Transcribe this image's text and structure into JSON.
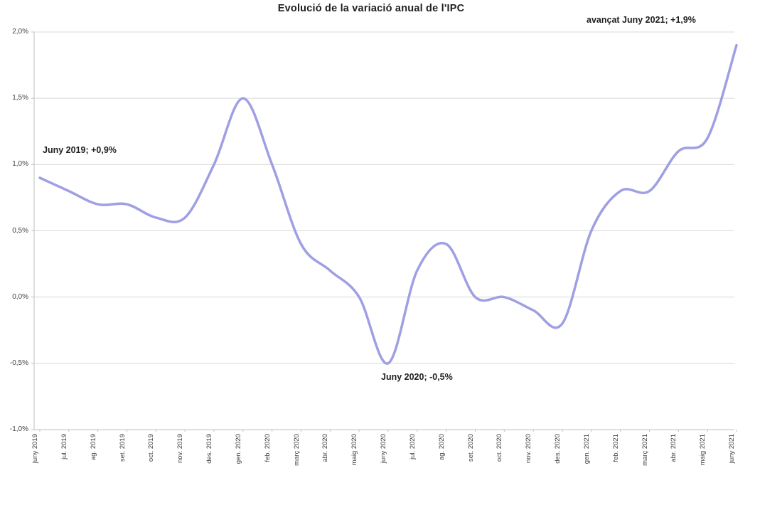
{
  "chart": {
    "background_color": "#ffffff",
    "line_color": "#9f9fe4",
    "gridline_color": "#d9d9d9",
    "axis_color": "#bfbfbf",
    "text_color": "#1f1f1f",
    "axis_label_color": "#3f3f3f"
  },
  "chart_data": {
    "type": "line",
    "title": "Evolució de la variació anual de l'IPC",
    "xlabel": "",
    "ylabel": "",
    "ylim": [
      -1.0,
      2.0
    ],
    "grid": "horizontal",
    "legend": "none",
    "smooth": true,
    "categories": [
      "juny 2019",
      "jul. 2019",
      "ag. 2019",
      "set. 2019",
      "oct. 2019",
      "nov. 2019",
      "des. 2019",
      "gen. 2020",
      "feb. 2020",
      "març 2020",
      "abr. 2020",
      "maig 2020",
      "juny 2020",
      "jul. 2020",
      "ag. 2020",
      "set. 2020",
      "oct. 2020",
      "nov. 2020",
      "des. 2020",
      "gen. 2021",
      "feb. 2021",
      "març 2021",
      "abr. 2021",
      "maig 2021",
      "juny 2021"
    ],
    "values": [
      0.9,
      0.8,
      0.7,
      0.7,
      0.6,
      0.6,
      1.0,
      1.5,
      1.0,
      0.4,
      0.2,
      0.0,
      -0.5,
      0.2,
      0.4,
      0.0,
      0.0,
      -0.1,
      -0.2,
      0.5,
      0.8,
      0.8,
      1.1,
      1.2,
      1.9
    ],
    "y_ticks": [
      {
        "label": "2,0%",
        "value": 2.0
      },
      {
        "label": "1,5%",
        "value": 1.5
      },
      {
        "label": "1,0%",
        "value": 1.0
      },
      {
        "label": "0,5%",
        "value": 0.5
      },
      {
        "label": "0,0%",
        "value": 0.0
      },
      {
        "label": "-0,5%",
        "value": -0.5
      },
      {
        "label": "-1,0%",
        "value": -1.0
      }
    ],
    "annotations": [
      {
        "text": "Juny 2019; +0,9%",
        "x": "juny 2019",
        "y": 0.9
      },
      {
        "text": "Juny 2020;  -0,5%",
        "x": "juny 2020",
        "y": -0.5
      },
      {
        "text": "avançat Juny 2021; +1,9%",
        "x": "juny 2021",
        "y": 1.9
      }
    ]
  }
}
